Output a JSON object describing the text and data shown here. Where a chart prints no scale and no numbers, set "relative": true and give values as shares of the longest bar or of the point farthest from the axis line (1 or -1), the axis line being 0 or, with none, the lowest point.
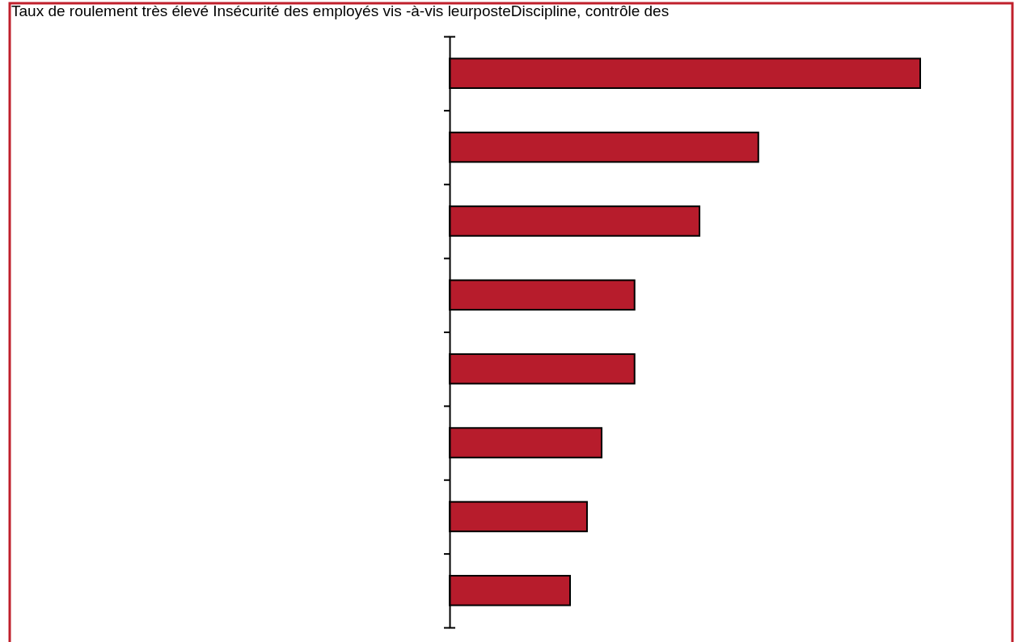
{
  "chart_data": {
    "type": "bar",
    "orientation": "horizontal",
    "relative": true,
    "title": "Taux de roulement très élevé Insécurité des employés vis -à-vis leurposteDiscipline, contrôle des",
    "categories": [
      null,
      null,
      null,
      null,
      null,
      null,
      null,
      null
    ],
    "values": [
      1,
      0.656,
      0.531,
      0.393,
      0.393,
      0.323,
      0.292,
      0.256
    ],
    "color": "#b71c2c"
  }
}
